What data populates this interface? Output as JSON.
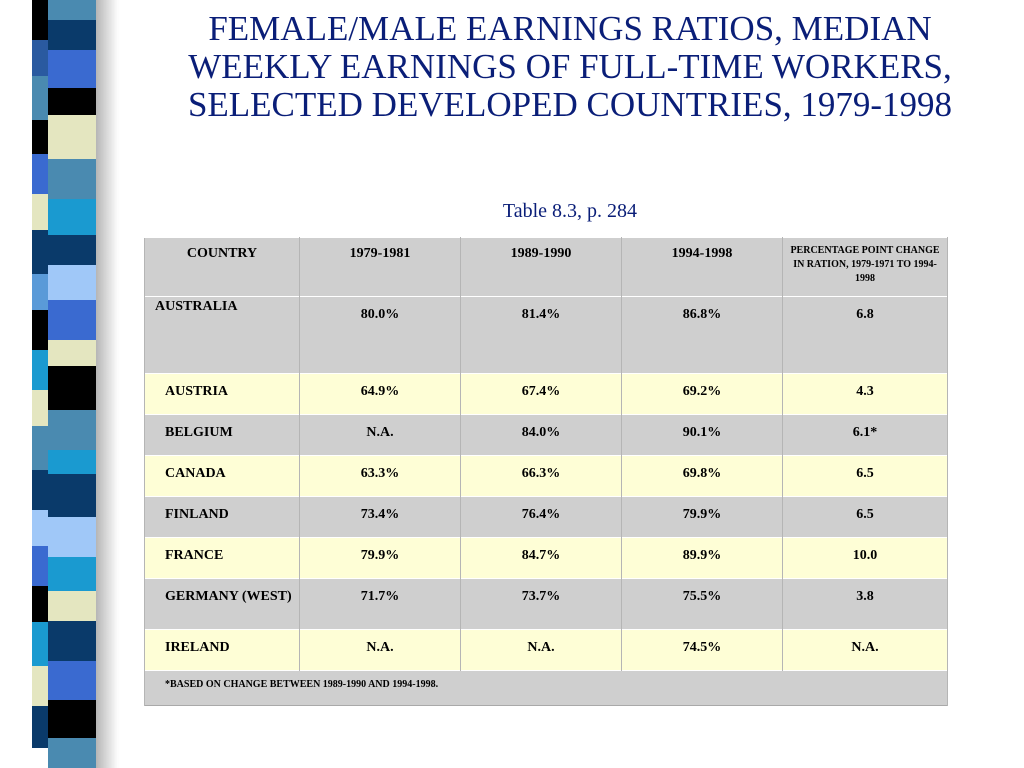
{
  "title": "FEMALE/MALE EARNINGS RATIOS, MEDIAN WEEKLY EARNINGS OF FULL-TIME WORKERS, SELECTED DEVELOPED COUNTRIES, 1979-1998",
  "subtitle": "Table 8.3, p. 284",
  "table": {
    "headers": [
      "COUNTRY",
      "1979-1981",
      "1989-1990",
      "1994-1998",
      "PERCENTAGE POINT CHANGE IN RATION, 1979-1971 TO 1994-1998"
    ],
    "rows": [
      {
        "country": "AUSTRALIA",
        "c1": "80.0%",
        "c2": "81.4%",
        "c3": "86.8%",
        "c4": "6.8"
      },
      {
        "country": "AUSTRIA",
        "c1": "64.9%",
        "c2": "67.4%",
        "c3": "69.2%",
        "c4": "4.3"
      },
      {
        "country": "BELGIUM",
        "c1": "N.A.",
        "c2": "84.0%",
        "c3": "90.1%",
        "c4": "6.1*"
      },
      {
        "country": "CANADA",
        "c1": "63.3%",
        "c2": "66.3%",
        "c3": "69.8%",
        "c4": "6.5"
      },
      {
        "country": "FINLAND",
        "c1": "73.4%",
        "c2": "76.4%",
        "c3": "79.9%",
        "c4": "6.5"
      },
      {
        "country": "FRANCE",
        "c1": "79.9%",
        "c2": "84.7%",
        "c3": "89.9%",
        "c4": "10.0"
      },
      {
        "country": "GERMANY (WEST)",
        "c1": "71.7%",
        "c2": "73.7%",
        "c3": "75.5%",
        "c4": "3.8"
      },
      {
        "country": "IRELAND",
        "c1": "N.A.",
        "c2": "N.A.",
        "c3": "74.5%",
        "c4": "N.A."
      }
    ],
    "footnote": "*BASED ON CHANGE BETWEEN 1989-1990 AND 1994-1998."
  },
  "colors": {
    "title": "#0a1e78",
    "row_gray": "#cfcfcf",
    "row_cream": "#fefed6",
    "strip": [
      "#4a8ab0",
      "#0a3a6a",
      "#3a6ad0",
      "#000000",
      "#e4e6c0",
      "#5a9ad8",
      "#1a9ad0",
      "#a0c8f8"
    ]
  }
}
